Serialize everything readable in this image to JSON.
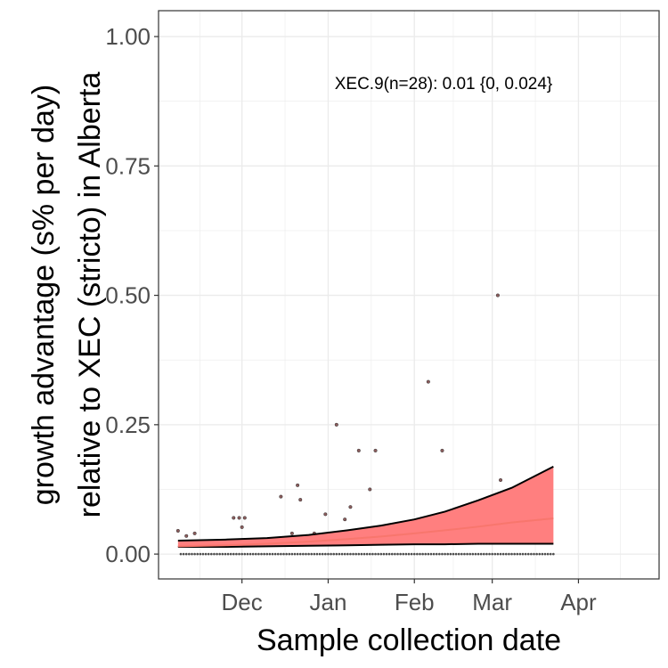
{
  "chart_data": {
    "type": "line",
    "title": "",
    "xlabel": "Sample collection date",
    "ylabel_line1": "growth advantage (s% per day)",
    "ylabel_line2": "relative to XEC (stricto) in Alberta",
    "annotation": "XEC.9(n=28): 0.01 {0, 0.024}",
    "xlim": [
      "2024-11-01",
      "2025-04-30"
    ],
    "ylim": [
      -0.048,
      1.05
    ],
    "grid": true,
    "legend": "none",
    "x_ticks": [
      {
        "label": "Dec",
        "date": "2024-12-01"
      },
      {
        "label": "Jan",
        "date": "2025-01-01"
      },
      {
        "label": "Feb",
        "date": "2025-02-01"
      },
      {
        "label": "Mar",
        "date": "2025-03-01"
      },
      {
        "label": "Apr",
        "date": "2025-04-01"
      }
    ],
    "y_ticks": [
      {
        "label": "0.00",
        "value": 0
      },
      {
        "label": "0.25",
        "value": 0.25
      },
      {
        "label": "0.50",
        "value": 0.5
      },
      {
        "label": "0.75",
        "value": 0.75
      },
      {
        "label": "1.00",
        "value": 1.0
      }
    ],
    "fit": {
      "x": [
        "2024-11-08",
        "2024-11-25",
        "2024-12-10",
        "2024-12-25",
        "2025-01-08",
        "2025-01-20",
        "2025-02-01",
        "2025-02-12",
        "2025-02-24",
        "2025-03-08",
        "2025-03-23"
      ],
      "y": [
        0.015,
        0.017,
        0.02,
        0.024,
        0.029,
        0.034,
        0.04,
        0.046,
        0.053,
        0.061,
        0.069
      ],
      "lower": [
        0.014,
        0.014,
        0.015,
        0.016,
        0.017,
        0.018,
        0.019,
        0.019,
        0.02,
        0.02,
        0.02
      ],
      "upper": [
        0.026,
        0.028,
        0.031,
        0.037,
        0.046,
        0.055,
        0.067,
        0.082,
        0.104,
        0.128,
        0.169
      ]
    },
    "points": [
      {
        "x": "2024-11-08",
        "y": 0.045
      },
      {
        "x": "2024-11-11",
        "y": 0.035
      },
      {
        "x": "2024-11-14",
        "y": 0.04
      },
      {
        "x": "2024-11-28",
        "y": 0.07
      },
      {
        "x": "2024-11-30",
        "y": 0.07
      },
      {
        "x": "2024-12-01",
        "y": 0.052
      },
      {
        "x": "2024-12-02",
        "y": 0.07
      },
      {
        "x": "2024-12-15",
        "y": 0.111
      },
      {
        "x": "2024-12-19",
        "y": 0.04
      },
      {
        "x": "2024-12-21",
        "y": 0.133
      },
      {
        "x": "2024-12-22",
        "y": 0.105
      },
      {
        "x": "2024-12-27",
        "y": 0.04
      },
      {
        "x": "2024-12-31",
        "y": 0.077
      },
      {
        "x": "2025-01-04",
        "y": 0.25
      },
      {
        "x": "2025-01-07",
        "y": 0.067
      },
      {
        "x": "2025-01-09",
        "y": 0.091
      },
      {
        "x": "2025-01-12",
        "y": 0.2
      },
      {
        "x": "2025-01-16",
        "y": 0.125
      },
      {
        "x": "2025-01-18",
        "y": 0.2
      },
      {
        "x": "2025-02-06",
        "y": 0.333
      },
      {
        "x": "2025-02-11",
        "y": 0.2
      },
      {
        "x": "2025-03-03",
        "y": 0.5
      },
      {
        "x": "2025-03-04",
        "y": 0.143
      }
    ],
    "zero_points": {
      "start": "2024-11-09",
      "end": "2025-03-23"
    },
    "colors": {
      "ribbon": "#ff7f7f",
      "fit_line": "#f8766d",
      "band_edge": "#000000",
      "points": "#4d4d4d",
      "grid": "#ebebeb",
      "panel_border": "#333333"
    }
  }
}
